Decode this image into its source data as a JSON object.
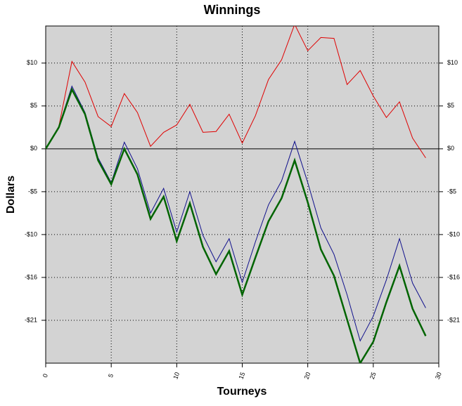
{
  "chart_data": {
    "type": "line",
    "title": "Winnings",
    "xlabel": "Tourneys",
    "ylabel": "Dollars",
    "x": [
      0,
      1,
      2,
      3,
      4,
      5,
      6,
      7,
      8,
      9,
      10,
      11,
      12,
      13,
      14,
      15,
      16,
      17,
      18,
      19,
      20,
      21,
      22,
      23,
      24,
      25,
      26,
      27,
      28,
      29
    ],
    "series": [
      {
        "color": "#e00000",
        "width": 1,
        "values": [
          0,
          2.7,
          10.6,
          8.1,
          3.9,
          2.7,
          6.7,
          4.4,
          0.3,
          2.0,
          2.9,
          5.4,
          2.0,
          2.1,
          4.2,
          0.7,
          4.0,
          8.4,
          10.8,
          15.1,
          11.9,
          13.5,
          13.4,
          7.8,
          9.5,
          6.4,
          3.8,
          5.7,
          1.3,
          -1.1
        ]
      },
      {
        "color": "#10108c",
        "width": 1,
        "values": [
          0,
          2.7,
          7.6,
          4.4,
          -1.1,
          -4.1,
          0.8,
          -2.4,
          -7.8,
          -4.8,
          -10.1,
          -5.2,
          -10.5,
          -13.7,
          -10.9,
          -16.2,
          -11.3,
          -6.8,
          -3.9,
          0.9,
          -4.1,
          -9.6,
          -12.8,
          -17.7,
          -23.3,
          -20.3,
          -15.9,
          -10.9,
          -16.3,
          -19.3
        ]
      },
      {
        "color": "#006400",
        "width": 2.5,
        "values": [
          0,
          2.6,
          7.2,
          4.2,
          -1.4,
          -4.3,
          0,
          -3.1,
          -8.5,
          -5.8,
          -11.2,
          -6.6,
          -11.9,
          -15.2,
          -12.4,
          -17.7,
          -13.2,
          -8.8,
          -6.0,
          -1.4,
          -6.5,
          -12.2,
          -15.4,
          -20.7,
          -26.0,
          -23.4,
          -18.6,
          -14.2,
          -19.4,
          -22.7
        ]
      }
    ],
    "xlim": [
      0,
      30
    ],
    "xticks": [
      0,
      5,
      10,
      15,
      20,
      25,
      30
    ],
    "ylim": [
      -26,
      14.9
    ],
    "yticks": [
      {
        "value": 10.4,
        "label": "$10"
      },
      {
        "value": 5.2,
        "label": "$5"
      },
      {
        "value": 0,
        "label": "$0"
      },
      {
        "value": -5.2,
        "label": "-$5"
      },
      {
        "value": -10.4,
        "label": "-$10"
      },
      {
        "value": -15.6,
        "label": "-$16"
      },
      {
        "value": -20.8,
        "label": "-$21"
      }
    ],
    "grid": true
  }
}
